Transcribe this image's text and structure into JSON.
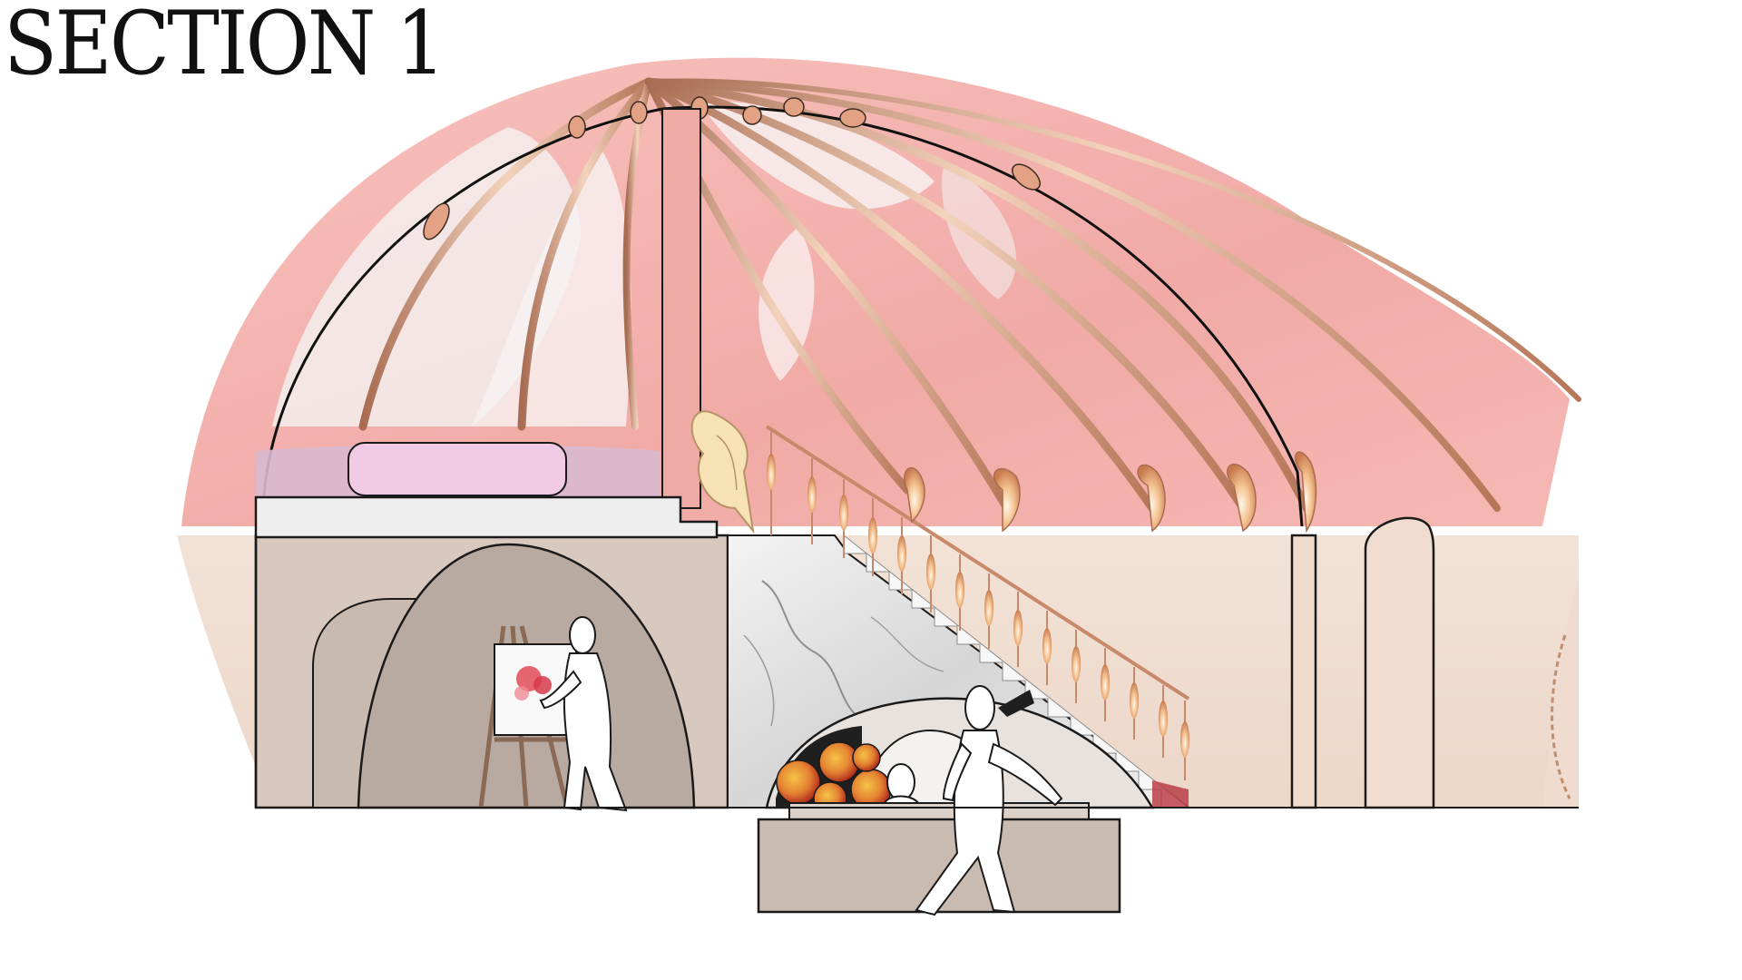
{
  "page": {
    "title": "SECTION 1"
  },
  "colors": {
    "canopy_pink": "#f4b3ae",
    "canopy_pink_dark": "#e99c98",
    "copper_rib": "#c88a6a",
    "copper_highlight": "#f5d7c2",
    "wall_beige": "#efdccd",
    "interior_taupe": "#c8b8ad",
    "arch_grey": "#b2a59d",
    "marble": "#dcdcdc",
    "bed_lilac": "#e9c9de",
    "outline": "#1a1a1a"
  },
  "figures": [
    {
      "name": "painter-figure",
      "icon": "person-silhouette"
    },
    {
      "name": "walking-figure",
      "icon": "person-silhouette"
    },
    {
      "name": "seated-figure-head",
      "icon": "person-silhouette"
    }
  ]
}
